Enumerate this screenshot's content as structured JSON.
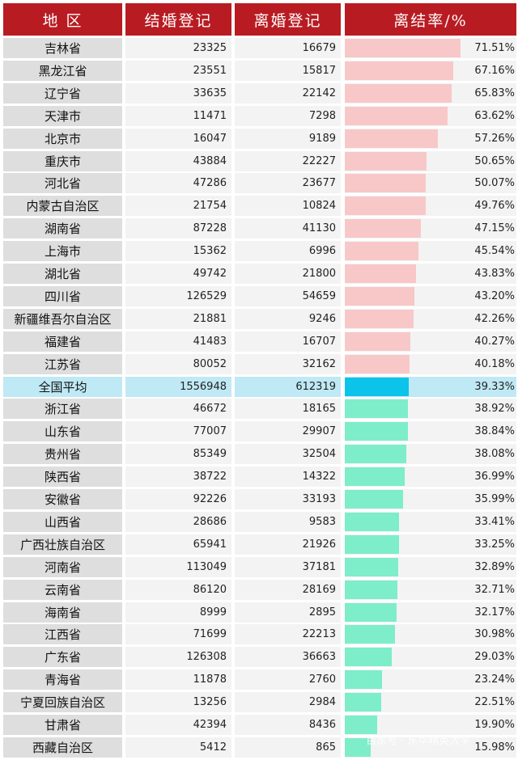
{
  "headers": {
    "region": "地  区",
    "marriage": "结婚登记",
    "divorce": "离婚登记",
    "rate": "离结率/%"
  },
  "colors": {
    "header": "#b81c22",
    "above_avg_bar": "#f8c8c8",
    "average_bar": "#0cc3ea",
    "below_avg_bar": "#7eedc9"
  },
  "watermark": "百家号 · 东华精英大学",
  "chart_data": {
    "type": "table",
    "rate_range": [
      0,
      75
    ],
    "rows": [
      {
        "region": "吉林省",
        "marriage": "23325",
        "divorce": "16679",
        "rate": 71.51,
        "rate_label": "71.51%",
        "group": "above"
      },
      {
        "region": "黑龙江省",
        "marriage": "23551",
        "divorce": "15817",
        "rate": 67.16,
        "rate_label": "67.16%",
        "group": "above"
      },
      {
        "region": "辽宁省",
        "marriage": "33635",
        "divorce": "22142",
        "rate": 65.83,
        "rate_label": "65.83%",
        "group": "above"
      },
      {
        "region": "天津市",
        "marriage": "11471",
        "divorce": "7298",
        "rate": 63.62,
        "rate_label": "63.62%",
        "group": "above"
      },
      {
        "region": "北京市",
        "marriage": "16047",
        "divorce": "9189",
        "rate": 57.26,
        "rate_label": "57.26%",
        "group": "above"
      },
      {
        "region": "重庆市",
        "marriage": "43884",
        "divorce": "22227",
        "rate": 50.65,
        "rate_label": "50.65%",
        "group": "above"
      },
      {
        "region": "河北省",
        "marriage": "47286",
        "divorce": "23677",
        "rate": 50.07,
        "rate_label": "50.07%",
        "group": "above"
      },
      {
        "region": "内蒙古自治区",
        "marriage": "21754",
        "divorce": "10824",
        "rate": 49.76,
        "rate_label": "49.76%",
        "group": "above"
      },
      {
        "region": "湖南省",
        "marriage": "87228",
        "divorce": "41130",
        "rate": 47.15,
        "rate_label": "47.15%",
        "group": "above"
      },
      {
        "region": "上海市",
        "marriage": "15362",
        "divorce": "6996",
        "rate": 45.54,
        "rate_label": "45.54%",
        "group": "above"
      },
      {
        "region": "湖北省",
        "marriage": "49742",
        "divorce": "21800",
        "rate": 43.83,
        "rate_label": "43.83%",
        "group": "above"
      },
      {
        "region": "四川省",
        "marriage": "126529",
        "divorce": "54659",
        "rate": 43.2,
        "rate_label": "43.20%",
        "group": "above"
      },
      {
        "region": "新疆维吾尔自治区",
        "marriage": "21881",
        "divorce": "9246",
        "rate": 42.26,
        "rate_label": "42.26%",
        "group": "above"
      },
      {
        "region": "福建省",
        "marriage": "41483",
        "divorce": "16707",
        "rate": 40.27,
        "rate_label": "40.27%",
        "group": "above"
      },
      {
        "region": "江苏省",
        "marriage": "80052",
        "divorce": "32162",
        "rate": 40.18,
        "rate_label": "40.18%",
        "group": "above"
      },
      {
        "region": "全国平均",
        "marriage": "1556948",
        "divorce": "612319",
        "rate": 39.33,
        "rate_label": "39.33%",
        "group": "average"
      },
      {
        "region": "浙江省",
        "marriage": "46672",
        "divorce": "18165",
        "rate": 38.92,
        "rate_label": "38.92%",
        "group": "below"
      },
      {
        "region": "山东省",
        "marriage": "77007",
        "divorce": "29907",
        "rate": 38.84,
        "rate_label": "38.84%",
        "group": "below"
      },
      {
        "region": "贵州省",
        "marriage": "85349",
        "divorce": "32504",
        "rate": 38.08,
        "rate_label": "38.08%",
        "group": "below"
      },
      {
        "region": "陕西省",
        "marriage": "38722",
        "divorce": "14322",
        "rate": 36.99,
        "rate_label": "36.99%",
        "group": "below"
      },
      {
        "region": "安徽省",
        "marriage": "92226",
        "divorce": "33193",
        "rate": 35.99,
        "rate_label": "35.99%",
        "group": "below"
      },
      {
        "region": "山西省",
        "marriage": "28686",
        "divorce": "9583",
        "rate": 33.41,
        "rate_label": "33.41%",
        "group": "below"
      },
      {
        "region": "广西壮族自治区",
        "marriage": "65941",
        "divorce": "21926",
        "rate": 33.25,
        "rate_label": "33.25%",
        "group": "below"
      },
      {
        "region": "河南省",
        "marriage": "113049",
        "divorce": "37181",
        "rate": 32.89,
        "rate_label": "32.89%",
        "group": "below"
      },
      {
        "region": "云南省",
        "marriage": "86120",
        "divorce": "28169",
        "rate": 32.71,
        "rate_label": "32.71%",
        "group": "below"
      },
      {
        "region": "海南省",
        "marriage": "8999",
        "divorce": "2895",
        "rate": 32.17,
        "rate_label": "32.17%",
        "group": "below"
      },
      {
        "region": "江西省",
        "marriage": "71699",
        "divorce": "22213",
        "rate": 30.98,
        "rate_label": "30.98%",
        "group": "below"
      },
      {
        "region": "广东省",
        "marriage": "126308",
        "divorce": "36663",
        "rate": 29.03,
        "rate_label": "29.03%",
        "group": "below"
      },
      {
        "region": "青海省",
        "marriage": "11878",
        "divorce": "2760",
        "rate": 23.24,
        "rate_label": "23.24%",
        "group": "below"
      },
      {
        "region": "宁夏回族自治区",
        "marriage": "13256",
        "divorce": "2984",
        "rate": 22.51,
        "rate_label": "22.51%",
        "group": "below"
      },
      {
        "region": "甘肃省",
        "marriage": "42394",
        "divorce": "8436",
        "rate": 19.9,
        "rate_label": "19.90%",
        "group": "below"
      },
      {
        "region": "西藏自治区",
        "marriage": "5412",
        "divorce": "865",
        "rate": 15.98,
        "rate_label": "15.98%",
        "group": "below"
      }
    ]
  }
}
